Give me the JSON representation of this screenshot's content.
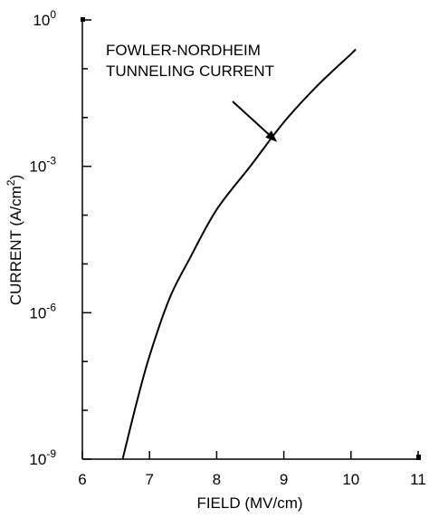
{
  "chart_data": {
    "type": "line",
    "xlabel": "FIELD (MV/cm)",
    "ylabel_main": "CURRENT (A/cm",
    "ylabel_sup": "2",
    "ylabel_close": ")",
    "xlim": [
      6,
      11
    ],
    "ylim_exp": [
      -9,
      0
    ],
    "y_scale": "log",
    "x_ticks": [
      "6",
      "7",
      "8",
      "9",
      "10",
      "11"
    ],
    "y_ticks": [
      {
        "base": "10",
        "exp": "0"
      },
      {
        "base": "10",
        "exp": "-3"
      },
      {
        "base": "10",
        "exp": "-6"
      },
      {
        "base": "10",
        "exp": "-9"
      }
    ],
    "annotation_lines": [
      "FOWLER-NORDHEIM",
      "TUNNELING CURRENT"
    ],
    "annotation_target": {
      "x": 8.9,
      "y": 0.00316
    },
    "grid": false,
    "series": [
      {
        "x": [
          6.6,
          6.8,
          7.0,
          7.3,
          7.6,
          8.0,
          8.5,
          9.0,
          9.5,
          10.0,
          10.07
        ],
        "y": [
          1e-09,
          1.3e-08,
          1.3e-07,
          2e-06,
          1.3e-05,
          0.00013,
          0.001,
          0.008,
          0.045,
          0.2,
          0.25
        ],
        "color": "#000000"
      }
    ]
  }
}
